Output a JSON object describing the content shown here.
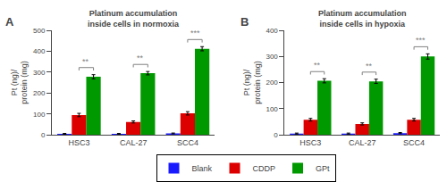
{
  "chart_data": [
    {
      "type": "bar",
      "label": "A",
      "title": "Platinum accumulation\ninside cells in normoxia",
      "categories": [
        "HSC3",
        "CAL-27",
        "SCC4"
      ],
      "series": [
        {
          "name": "Blank",
          "color": "#1a1aff",
          "values": [
            5,
            5,
            7
          ],
          "errors": [
            2,
            2,
            2
          ]
        },
        {
          "name": "CDDP",
          "color": "#dd0000",
          "values": [
            95,
            62,
            103
          ],
          "errors": [
            8,
            5,
            8
          ]
        },
        {
          "name": "GPt",
          "color": "#009900",
          "values": [
            278,
            295,
            412
          ],
          "errors": [
            10,
            8,
            10
          ]
        }
      ],
      "ylabel": "Pt (ng)/\nprotein (mg)",
      "ylim": [
        0,
        500
      ],
      "yticks": [
        0,
        100,
        200,
        300,
        400,
        500
      ],
      "annotations": [
        {
          "category": "HSC3",
          "between": [
            "CDDP",
            "GPt"
          ],
          "text": "**"
        },
        {
          "category": "CAL-27",
          "between": [
            "CDDP",
            "GPt"
          ],
          "text": "**"
        },
        {
          "category": "SCC4",
          "between": [
            "CDDP",
            "GPt"
          ],
          "text": "***"
        }
      ],
      "grid": false,
      "legend": "bottom"
    },
    {
      "type": "bar",
      "label": "B",
      "title": "Platinum accumulation\ninside cells in hypoxia",
      "categories": [
        "HSC3",
        "CAL-27",
        "SCC4"
      ],
      "series": [
        {
          "name": "Blank",
          "color": "#1a1aff",
          "values": [
            5,
            5,
            7
          ],
          "errors": [
            2,
            2,
            2
          ]
        },
        {
          "name": "CDDP",
          "color": "#dd0000",
          "values": [
            58,
            42,
            58
          ],
          "errors": [
            5,
            4,
            5
          ]
        },
        {
          "name": "GPt",
          "color": "#009900",
          "values": [
            207,
            205,
            300
          ],
          "errors": [
            8,
            8,
            10
          ]
        }
      ],
      "ylabel": "Pt (ng)/\nprotein (mg)",
      "ylim": [
        0,
        400
      ],
      "yticks": [
        0,
        100,
        200,
        300,
        400
      ],
      "annotations": [
        {
          "category": "HSC3",
          "between": [
            "CDDP",
            "GPt"
          ],
          "text": "**"
        },
        {
          "category": "CAL-27",
          "between": [
            "CDDP",
            "GPt"
          ],
          "text": "**"
        },
        {
          "category": "SCC4",
          "between": [
            "CDDP",
            "GPt"
          ],
          "text": "***"
        }
      ],
      "grid": false,
      "legend": "bottom"
    }
  ]
}
